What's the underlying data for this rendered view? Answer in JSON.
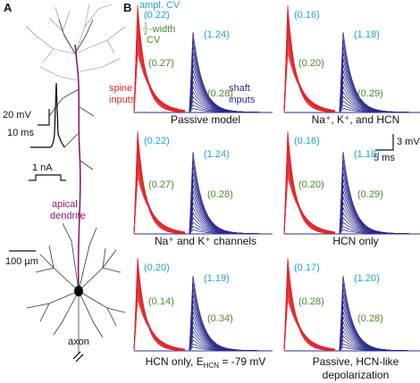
{
  "panel_a": {
    "label": "A",
    "inset": {
      "voltage_scale": "20 mV",
      "time_scale": "10 ms",
      "current_scale": "1 nA"
    },
    "apical_label": [
      "apical",
      "dendrite"
    ],
    "length_scale": "100 µm",
    "axon_label": "axon"
  },
  "panel_b": {
    "label": "B",
    "legend": {
      "amplitude_cv": "ampl. CV",
      "half_numerator": "1",
      "half_denominator": "2",
      "half_width": "-width",
      "half_width_cv": "CV",
      "spine_inputs": [
        "spine",
        "inputs"
      ],
      "shaft_inputs": [
        "shaft",
        "inputs"
      ]
    },
    "scale": {
      "voltage": "3 mV",
      "time": "5 ms"
    },
    "subpanels": [
      {
        "title": [
          "Passive model"
        ],
        "spine_ampl_cv": "(0.22)",
        "spine_width_cv": "(0.27)",
        "shaft_ampl_cv": "(1.24)",
        "shaft_width_cv": "(0.28)"
      },
      {
        "title": [
          "Na⁺, K⁺, and HCN"
        ],
        "spine_ampl_cv": "(0.16)",
        "spine_width_cv": "(0.20)",
        "shaft_ampl_cv": "(1.18)",
        "shaft_width_cv": "(0.29)"
      },
      {
        "title": [
          "Na⁺ and K⁺ channels"
        ],
        "spine_ampl_cv": "(0.22)",
        "spine_width_cv": "(0.27)",
        "shaft_ampl_cv": "(1.24)",
        "shaft_width_cv": "(0.28)"
      },
      {
        "title": [
          "HCN only"
        ],
        "spine_ampl_cv": "(0.16)",
        "spine_width_cv": "(0.20)",
        "shaft_ampl_cv": "(1.18)",
        "shaft_width_cv": "(0.29)"
      },
      {
        "title": [
          "HCN only, E"
        ],
        "title_sub": "HCN",
        "title_tail": " = -79 mV",
        "spine_ampl_cv": "(0.20)",
        "spine_width_cv": "(0.14)",
        "shaft_ampl_cv": "(1.19)",
        "shaft_width_cv": "(0.34)"
      },
      {
        "title": [
          "Passive, HCN-like",
          "depolarization"
        ],
        "spine_ampl_cv": "(0.17)",
        "spine_width_cv": "(0.28)",
        "shaft_ampl_cv": "(1.20)",
        "shaft_width_cv": "(0.28)"
      }
    ]
  }
}
